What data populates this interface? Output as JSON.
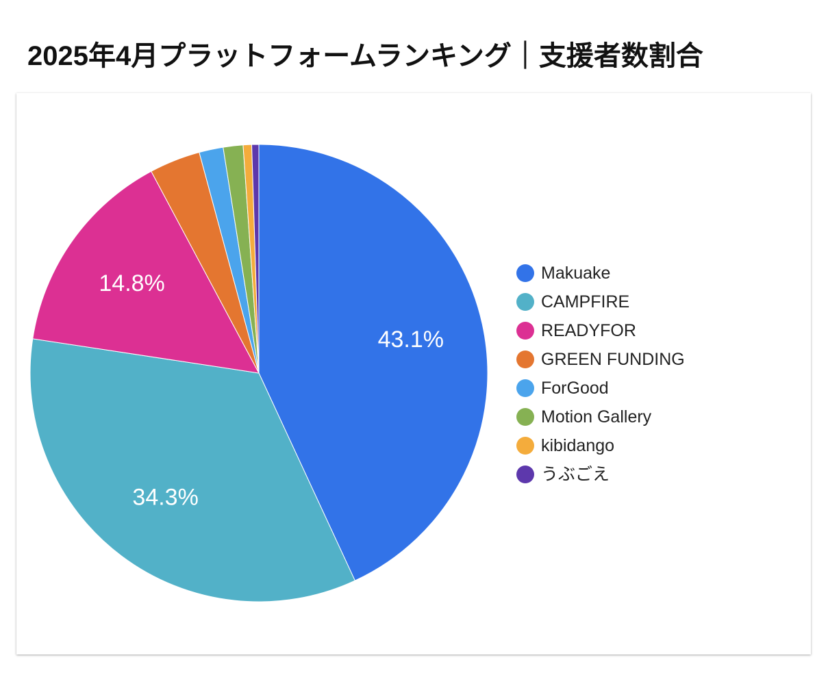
{
  "page": {
    "title": "2025年4月プラットフォームランキング｜支援者数割合"
  },
  "chart_data": {
    "type": "pie",
    "title": "2025年4月プラットフォームランキング｜支援者数割合",
    "legend_position": "right",
    "slices": [
      {
        "name": "Makuake",
        "value": 43.1,
        "label": "43.1%",
        "color": "#3273e8"
      },
      {
        "name": "CAMPFIRE",
        "value": 34.3,
        "label": "34.3%",
        "color": "#52b1c8"
      },
      {
        "name": "READYFOR",
        "value": 14.8,
        "label": "14.8%",
        "color": "#dc3093"
      },
      {
        "name": "GREEN FUNDING",
        "value": 3.6,
        "label": "",
        "color": "#e47630"
      },
      {
        "name": "ForGood",
        "value": 1.7,
        "label": "",
        "color": "#4ba4ec"
      },
      {
        "name": "Motion Gallery",
        "value": 1.4,
        "label": "",
        "color": "#86b153"
      },
      {
        "name": "kibidango",
        "value": 0.6,
        "label": "",
        "color": "#f4ac3c"
      },
      {
        "name": "うぶごえ",
        "value": 0.5,
        "label": "",
        "color": "#5d38ac"
      }
    ]
  }
}
